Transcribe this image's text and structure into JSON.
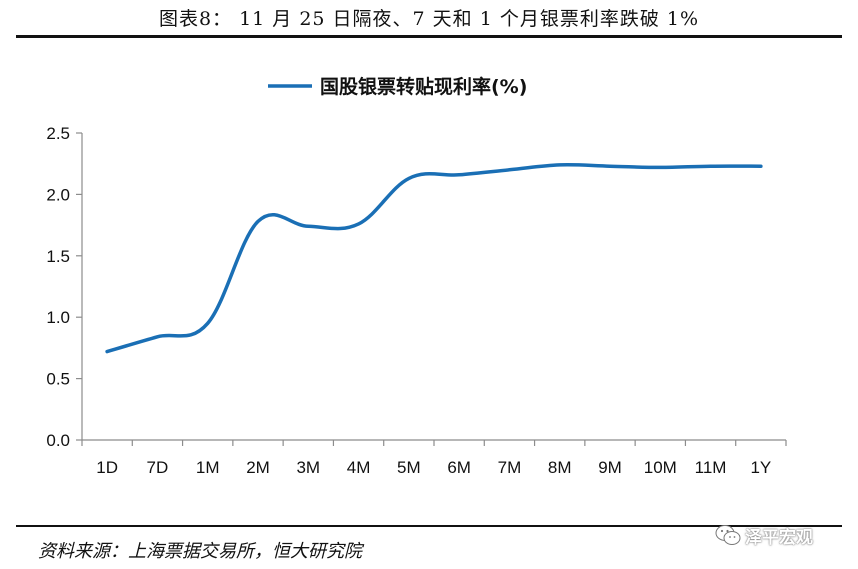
{
  "figure": {
    "caption": "图表8：  11 月 25 日隔夜、7 天和 1 个月银票利率跌破 1%",
    "source": "资料来源：上海票据交易所，恒大研究院",
    "watermark_text": "泽平宏观",
    "watermark_icon": "wechat-icon"
  },
  "chart_data": {
    "type": "line",
    "title": "",
    "xlabel": "",
    "ylabel": "",
    "categories": [
      "1D",
      "7D",
      "1M",
      "2M",
      "3M",
      "4M",
      "5M",
      "6M",
      "7M",
      "8M",
      "9M",
      "10M",
      "11M",
      "1Y"
    ],
    "series": [
      {
        "name": "国股银票转贴现利率(%)",
        "values": [
          0.72,
          0.84,
          0.95,
          1.78,
          1.74,
          1.76,
          2.13,
          2.16,
          2.2,
          2.24,
          2.23,
          2.22,
          2.23,
          2.23
        ]
      }
    ],
    "yticks": [
      "0.0",
      "0.5",
      "1.0",
      "1.5",
      "2.0",
      "2.5"
    ],
    "ylim": [
      0,
      2.5
    ],
    "grid": false,
    "legend_position": "top-center",
    "colors": {
      "line": "#1a6fb5"
    }
  }
}
